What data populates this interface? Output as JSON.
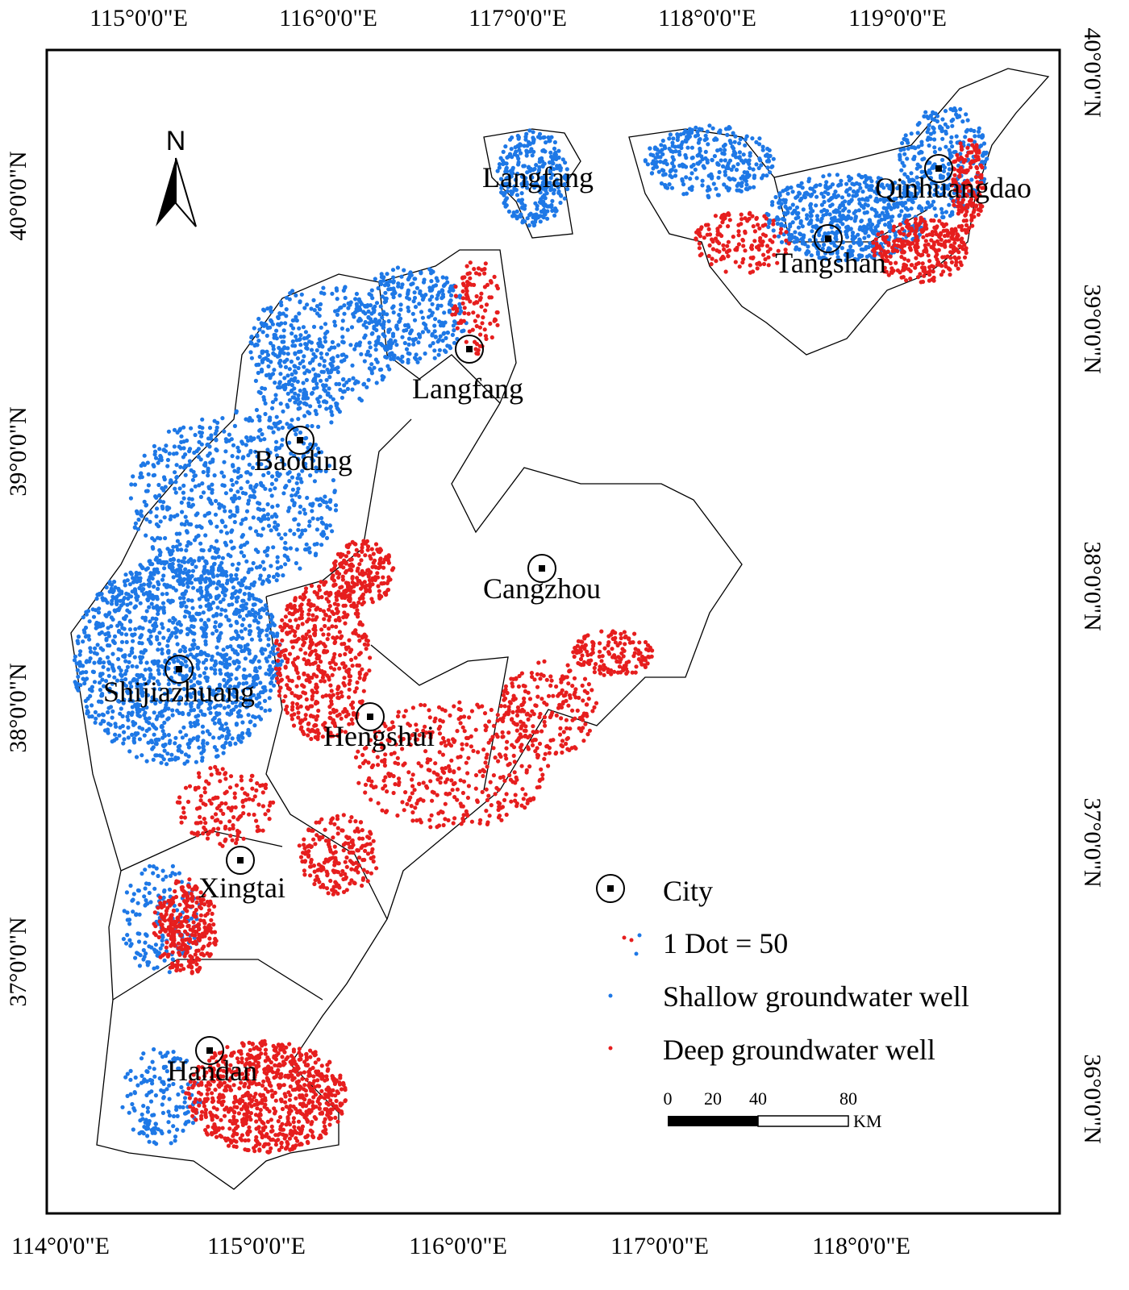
{
  "map": {
    "top_ticks": [
      "115°0'0\"E",
      "116°0'0\"E",
      "117°0'0\"E",
      "118°0'0\"E",
      "119°0'0\"E"
    ],
    "bottom_ticks": [
      "114°0'0\"E",
      "115°0'0\"E",
      "116°0'0\"E",
      "117°0'0\"E",
      "118°0'0\"E"
    ],
    "left_ticks": [
      "40°0'0\"N",
      "39°0'0\"N",
      "38°0'0\"N",
      "37°0'0\"N"
    ],
    "right_ticks": [
      "40°0'0\"N",
      "39°0'0\"N",
      "38°0'0\"N",
      "37°0'0\"N",
      "36°0'0\"N"
    ],
    "north_label": "N",
    "cities": [
      "Langfang",
      "Langfang",
      "Baoding",
      "Cangzhou",
      "Shijiazhuang",
      "Hengshui",
      "Xingtai",
      "Handan",
      "Tangshan",
      "Qinhuangdao"
    ]
  },
  "legend": {
    "city": "City",
    "dot_value": "1 Dot = 50",
    "shallow": "Shallow groundwater well",
    "deep": "Deep groundwater well"
  },
  "scale": {
    "labels": [
      "0",
      "20",
      "40",
      "80"
    ],
    "unit": "KM"
  },
  "colors": {
    "shallow": "#1e78e6",
    "deep": "#e61e1e"
  }
}
